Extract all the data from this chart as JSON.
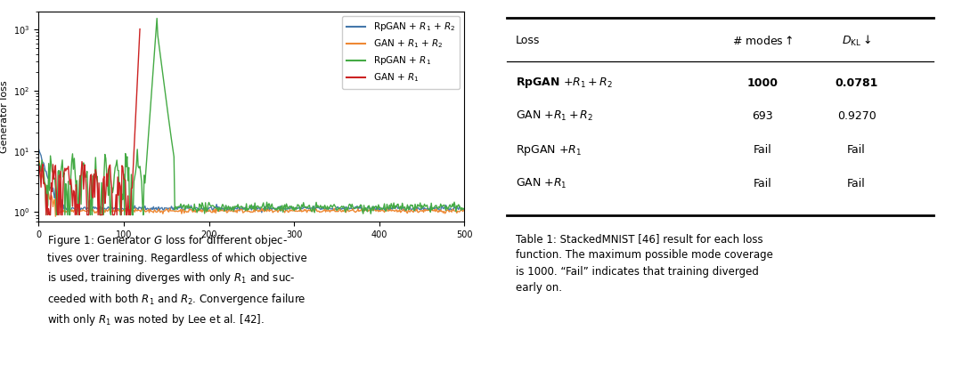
{
  "fig_width": 10.8,
  "fig_height": 4.26,
  "dpi": 100,
  "bg_color": "#ffffff",
  "plot_colors": {
    "rpgan_r1r2": "#4477aa",
    "gan_r1r2": "#ee8833",
    "rpgan_r1": "#44aa44",
    "gan_r1": "#cc2222"
  },
  "legend_labels": [
    "RpGAN + $R_1$ + $R_2$",
    "GAN + $R_1$ + $R_2$",
    "RpGAN + $R_1$",
    "GAN + $R_1$"
  ],
  "ylabel": "Generator loss",
  "ylim_log": [
    0.7,
    2000
  ],
  "table_header": [
    "Loss",
    "# modes↑",
    "$D_{\\mathrm{KL}}\\downarrow$"
  ],
  "table_rows": [
    [
      "RpGAN $+R_1 + R_2$",
      "1000",
      "0.0781",
      true
    ],
    [
      "GAN $+R_1 + R_2$",
      "693",
      "0.9270",
      false
    ],
    [
      "RpGAN $+R_1$",
      "Fail",
      "Fail",
      false
    ],
    [
      "GAN $+R_1$",
      "Fail",
      "Fail",
      false
    ]
  ],
  "ref46_color": "#4488cc",
  "ref42_color": "#4488cc"
}
